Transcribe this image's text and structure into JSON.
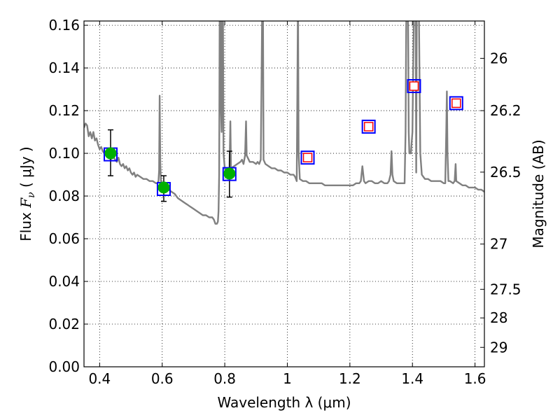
{
  "chart_data": {
    "type": "scatter",
    "xlabel": "Wavelength  λ (μm)",
    "ylabel_prefix": "Flux ",
    "ylabel_var": "F",
    "ylabel_sub": "ν",
    "ylabel_units": " ( μJy )",
    "y2label": "Magnitude (AB)",
    "xlim": [
      0.35,
      1.63
    ],
    "ylim": [
      0.0,
      0.162
    ],
    "grid": true,
    "x_ticks": [
      {
        "value": 0.4,
        "label": "0.4"
      },
      {
        "value": 0.6,
        "label": "0.6"
      },
      {
        "value": 0.8,
        "label": "0.8"
      },
      {
        "value": 1.0,
        "label": "1"
      },
      {
        "value": 1.2,
        "label": "1.2"
      },
      {
        "value": 1.4,
        "label": "1.4"
      },
      {
        "value": 1.6,
        "label": "1.6"
      }
    ],
    "y_ticks": [
      {
        "value": 0.0,
        "label": "0.00"
      },
      {
        "value": 0.02,
        "label": "0.02"
      },
      {
        "value": 0.04,
        "label": "0.04"
      },
      {
        "value": 0.06,
        "label": "0.06"
      },
      {
        "value": 0.08,
        "label": "0.08"
      },
      {
        "value": 0.1,
        "label": "0.10"
      },
      {
        "value": 0.12,
        "label": "0.12"
      },
      {
        "value": 0.14,
        "label": "0.14"
      },
      {
        "value": 0.16,
        "label": "0.16"
      }
    ],
    "y2_ticks": [
      {
        "flux": 0.1445,
        "label": "26"
      },
      {
        "flux": 0.12,
        "label": "26.2"
      },
      {
        "flux": 0.0912,
        "label": "26.5"
      },
      {
        "flux": 0.0575,
        "label": "27"
      },
      {
        "flux": 0.0363,
        "label": "27.5"
      },
      {
        "flux": 0.0229,
        "label": "28"
      },
      {
        "flux": 0.0091,
        "label": "29"
      }
    ],
    "model_spectrum": {
      "color": "#808080",
      "points": [
        [
          0.35,
          0.112
        ],
        [
          0.355,
          0.114
        ],
        [
          0.36,
          0.113
        ],
        [
          0.365,
          0.108
        ],
        [
          0.37,
          0.11
        ],
        [
          0.375,
          0.107
        ],
        [
          0.38,
          0.11
        ],
        [
          0.385,
          0.106
        ],
        [
          0.39,
          0.107
        ],
        [
          0.395,
          0.104
        ],
        [
          0.4,
          0.102
        ],
        [
          0.405,
          0.103
        ],
        [
          0.41,
          0.101
        ],
        [
          0.415,
          0.1
        ],
        [
          0.42,
          0.101
        ],
        [
          0.425,
          0.099
        ],
        [
          0.43,
          0.1
        ],
        [
          0.435,
          0.097
        ],
        [
          0.44,
          0.099
        ],
        [
          0.445,
          0.098
        ],
        [
          0.45,
          0.097
        ],
        [
          0.455,
          0.096
        ],
        [
          0.46,
          0.098
        ],
        [
          0.465,
          0.095
        ],
        [
          0.47,
          0.094
        ],
        [
          0.475,
          0.095
        ],
        [
          0.48,
          0.093
        ],
        [
          0.485,
          0.094
        ],
        [
          0.49,
          0.092
        ],
        [
          0.495,
          0.093
        ],
        [
          0.5,
          0.091
        ],
        [
          0.505,
          0.09
        ],
        [
          0.51,
          0.091
        ],
        [
          0.515,
          0.089
        ],
        [
          0.52,
          0.09
        ],
        [
          0.53,
          0.089
        ],
        [
          0.54,
          0.088
        ],
        [
          0.55,
          0.088
        ],
        [
          0.56,
          0.087
        ],
        [
          0.57,
          0.087
        ],
        [
          0.58,
          0.086
        ],
        [
          0.585,
          0.086
        ],
        [
          0.588,
          0.087
        ],
        [
          0.59,
          0.092
        ],
        [
          0.592,
          0.127
        ],
        [
          0.594,
          0.095
        ],
        [
          0.596,
          0.087
        ],
        [
          0.6,
          0.085
        ],
        [
          0.61,
          0.085
        ],
        [
          0.62,
          0.083
        ],
        [
          0.63,
          0.082
        ],
        [
          0.64,
          0.081
        ],
        [
          0.65,
          0.079
        ],
        [
          0.66,
          0.078
        ],
        [
          0.67,
          0.077
        ],
        [
          0.68,
          0.076
        ],
        [
          0.69,
          0.075
        ],
        [
          0.7,
          0.074
        ],
        [
          0.71,
          0.073
        ],
        [
          0.72,
          0.072
        ],
        [
          0.73,
          0.071
        ],
        [
          0.74,
          0.071
        ],
        [
          0.75,
          0.07
        ],
        [
          0.76,
          0.07
        ],
        [
          0.765,
          0.069
        ],
        [
          0.77,
          0.067
        ],
        [
          0.775,
          0.067
        ],
        [
          0.778,
          0.068
        ],
        [
          0.78,
          0.073
        ],
        [
          0.782,
          0.09
        ],
        [
          0.784,
          0.175
        ],
        [
          0.786,
          0.175
        ],
        [
          0.788,
          0.12
        ],
        [
          0.79,
          0.11
        ],
        [
          0.792,
          0.175
        ],
        [
          0.794,
          0.175
        ],
        [
          0.796,
          0.1
        ],
        [
          0.8,
          0.093
        ],
        [
          0.81,
          0.091
        ],
        [
          0.815,
          0.092
        ],
        [
          0.818,
          0.115
        ],
        [
          0.82,
          0.093
        ],
        [
          0.83,
          0.094
        ],
        [
          0.84,
          0.095
        ],
        [
          0.85,
          0.096
        ],
        [
          0.855,
          0.097
        ],
        [
          0.86,
          0.095
        ],
        [
          0.865,
          0.099
        ],
        [
          0.868,
          0.115
        ],
        [
          0.87,
          0.099
        ],
        [
          0.88,
          0.096
        ],
        [
          0.89,
          0.096
        ],
        [
          0.9,
          0.095
        ],
        [
          0.905,
          0.096
        ],
        [
          0.91,
          0.095
        ],
        [
          0.915,
          0.097
        ],
        [
          0.918,
          0.14
        ],
        [
          0.92,
          0.175
        ],
        [
          0.922,
          0.175
        ],
        [
          0.924,
          0.097
        ],
        [
          0.93,
          0.095
        ],
        [
          0.94,
          0.094
        ],
        [
          0.95,
          0.093
        ],
        [
          0.96,
          0.093
        ],
        [
          0.97,
          0.092
        ],
        [
          0.98,
          0.092
        ],
        [
          0.99,
          0.091
        ],
        [
          1.0,
          0.091
        ],
        [
          1.01,
          0.09
        ],
        [
          1.02,
          0.09
        ],
        [
          1.025,
          0.089
        ],
        [
          1.03,
          0.087
        ],
        [
          1.032,
          0.13
        ],
        [
          1.034,
          0.175
        ],
        [
          1.036,
          0.1
        ],
        [
          1.04,
          0.088
        ],
        [
          1.05,
          0.087
        ],
        [
          1.06,
          0.087
        ],
        [
          1.07,
          0.086
        ],
        [
          1.08,
          0.086
        ],
        [
          1.09,
          0.086
        ],
        [
          1.1,
          0.086
        ],
        [
          1.11,
          0.086
        ],
        [
          1.12,
          0.085
        ],
        [
          1.13,
          0.085
        ],
        [
          1.14,
          0.085
        ],
        [
          1.15,
          0.085
        ],
        [
          1.16,
          0.085
        ],
        [
          1.17,
          0.085
        ],
        [
          1.18,
          0.085
        ],
        [
          1.19,
          0.085
        ],
        [
          1.2,
          0.085
        ],
        [
          1.21,
          0.085
        ],
        [
          1.22,
          0.086
        ],
        [
          1.23,
          0.086
        ],
        [
          1.235,
          0.087
        ],
        [
          1.24,
          0.094
        ],
        [
          1.245,
          0.087
        ],
        [
          1.25,
          0.086
        ],
        [
          1.26,
          0.087
        ],
        [
          1.27,
          0.087
        ],
        [
          1.28,
          0.086
        ],
        [
          1.29,
          0.086
        ],
        [
          1.3,
          0.087
        ],
        [
          1.31,
          0.086
        ],
        [
          1.32,
          0.086
        ],
        [
          1.325,
          0.087
        ],
        [
          1.33,
          0.09
        ],
        [
          1.333,
          0.101
        ],
        [
          1.336,
          0.09
        ],
        [
          1.34,
          0.087
        ],
        [
          1.35,
          0.086
        ],
        [
          1.36,
          0.086
        ],
        [
          1.37,
          0.086
        ],
        [
          1.375,
          0.086
        ],
        [
          1.378,
          0.11
        ],
        [
          1.38,
          0.16
        ],
        [
          1.382,
          0.175
        ],
        [
          1.384,
          0.175
        ],
        [
          1.386,
          0.16
        ],
        [
          1.388,
          0.11
        ],
        [
          1.39,
          0.1
        ],
        [
          1.395,
          0.1
        ],
        [
          1.4,
          0.11
        ],
        [
          1.405,
          0.175
        ],
        [
          1.41,
          0.175
        ],
        [
          1.412,
          0.091
        ],
        [
          1.414,
          0.175
        ],
        [
          1.42,
          0.175
        ],
        [
          1.425,
          0.1
        ],
        [
          1.43,
          0.09
        ],
        [
          1.44,
          0.088
        ],
        [
          1.45,
          0.088
        ],
        [
          1.46,
          0.087
        ],
        [
          1.47,
          0.087
        ],
        [
          1.48,
          0.087
        ],
        [
          1.49,
          0.087
        ],
        [
          1.5,
          0.086
        ],
        [
          1.505,
          0.086
        ],
        [
          1.508,
          0.11
        ],
        [
          1.51,
          0.129
        ],
        [
          1.512,
          0.1
        ],
        [
          1.515,
          0.087
        ],
        [
          1.52,
          0.087
        ],
        [
          1.53,
          0.086
        ],
        [
          1.535,
          0.087
        ],
        [
          1.538,
          0.095
        ],
        [
          1.54,
          0.087
        ],
        [
          1.55,
          0.086
        ],
        [
          1.56,
          0.085
        ],
        [
          1.57,
          0.085
        ],
        [
          1.58,
          0.084
        ],
        [
          1.59,
          0.084
        ],
        [
          1.6,
          0.084
        ],
        [
          1.61,
          0.083
        ],
        [
          1.62,
          0.083
        ],
        [
          1.63,
          0.082
        ]
      ]
    },
    "observed_points": {
      "face_color": "#00b000",
      "points": [
        {
          "x": 0.435,
          "y": 0.1,
          "yerr_low": 0.0895,
          "yerr_high": 0.111
        },
        {
          "x": 0.605,
          "y": 0.084,
          "yerr_low": 0.0775,
          "yerr_high": 0.0895
        },
        {
          "x": 0.815,
          "y": 0.0905,
          "yerr_low": 0.0795,
          "yerr_high": 0.101
        }
      ]
    },
    "model_bands": {
      "color": "#0000ff",
      "points": [
        {
          "x": 0.435,
          "y": 0.0995
        },
        {
          "x": 0.605,
          "y": 0.0833
        },
        {
          "x": 0.815,
          "y": 0.0903
        },
        {
          "x": 1.065,
          "y": 0.098
        },
        {
          "x": 1.26,
          "y": 0.1125
        },
        {
          "x": 1.405,
          "y": 0.1315
        },
        {
          "x": 1.54,
          "y": 0.1235
        }
      ]
    },
    "predicted_points": {
      "color": "#ff0000",
      "points": [
        {
          "x": 1.065,
          "y": 0.098
        },
        {
          "x": 1.26,
          "y": 0.1125
        },
        {
          "x": 1.405,
          "y": 0.1315
        },
        {
          "x": 1.54,
          "y": 0.1235
        }
      ]
    }
  }
}
